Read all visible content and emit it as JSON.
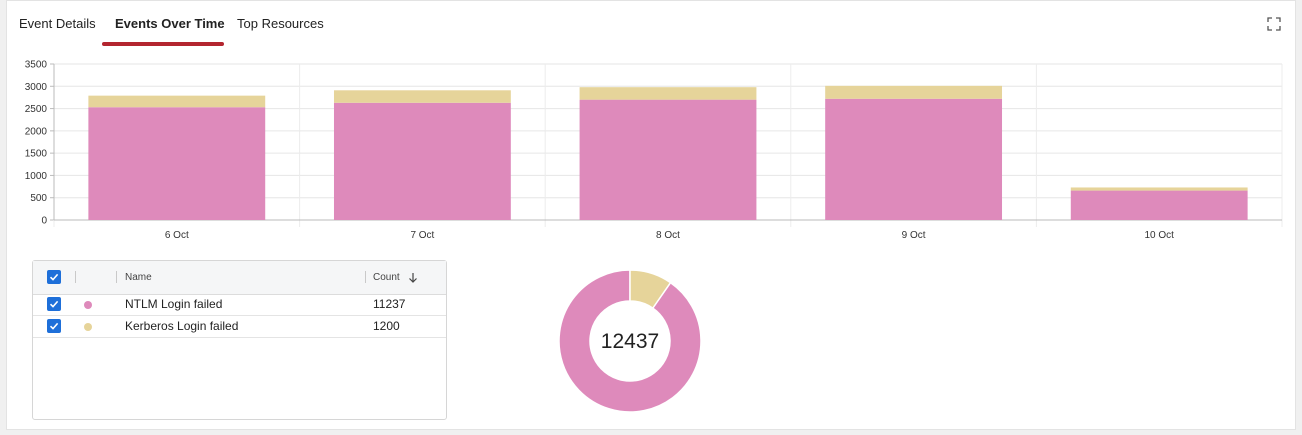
{
  "tabs": [
    {
      "label": "Event Details"
    },
    {
      "label": "Events Over Time"
    },
    {
      "label": "Top Resources"
    }
  ],
  "active_tab": "Events Over Time",
  "colors": {
    "ntlm": "#de8abb",
    "kerberos": "#e6d49a",
    "accent": "#b3252f",
    "checkbox": "#1e6fd9"
  },
  "table": {
    "headers": {
      "name": "Name",
      "count": "Count"
    },
    "sort": "descending",
    "rows": [
      {
        "name": "NTLM Login failed",
        "count": "11237",
        "color": "#de8abb",
        "checked": true
      },
      {
        "name": "Kerberos Login failed",
        "count": "1200",
        "color": "#e6d49a",
        "checked": true
      }
    ]
  },
  "donut": {
    "total": "12437"
  },
  "chart_data": [
    {
      "type": "bar",
      "stacked": true,
      "categories": [
        "6 Oct",
        "7 Oct",
        "8 Oct",
        "9 Oct",
        "10 Oct"
      ],
      "series": [
        {
          "values": [
            2530,
            2630,
            2700,
            2720,
            660
          ],
          "color": "#de8abb"
        },
        {
          "values": [
            260,
            280,
            280,
            290,
            70
          ],
          "color": "#e6d49a"
        }
      ],
      "ylim": [
        0,
        3500
      ],
      "yticks": [
        0,
        500,
        1000,
        1500,
        2000,
        2500,
        3000,
        3500
      ],
      "grid": true,
      "legend": "none"
    },
    {
      "type": "pie",
      "style": "donut",
      "labels": [
        "NTLM Login failed",
        "Kerberos Login failed"
      ],
      "values": [
        11237,
        1200
      ],
      "colors": [
        "#de8abb",
        "#e6d49a"
      ],
      "center_label": "12437"
    }
  ]
}
